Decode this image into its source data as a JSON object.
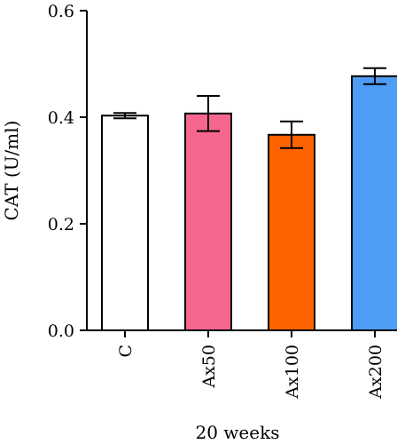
{
  "chart_data": {
    "type": "bar",
    "categories": [
      "C",
      "Ax50",
      "Ax100",
      "Ax200"
    ],
    "values": [
      0.403,
      0.407,
      0.367,
      0.477
    ],
    "errors": [
      0.005,
      0.033,
      0.025,
      0.015
    ],
    "colors": [
      "#ffffff",
      "#f7668e",
      "#ff6300",
      "#4f9cf5"
    ],
    "xlabel": "20 weeks",
    "ylabel": "CAT (U/ml)",
    "ylim": [
      0.0,
      0.6
    ],
    "yticks": [
      0.0,
      0.2,
      0.4,
      0.6
    ],
    "ytick_labels": [
      "0.0",
      "0.2",
      "0.4",
      "0.6"
    ],
    "grid": false,
    "legend": "none"
  }
}
